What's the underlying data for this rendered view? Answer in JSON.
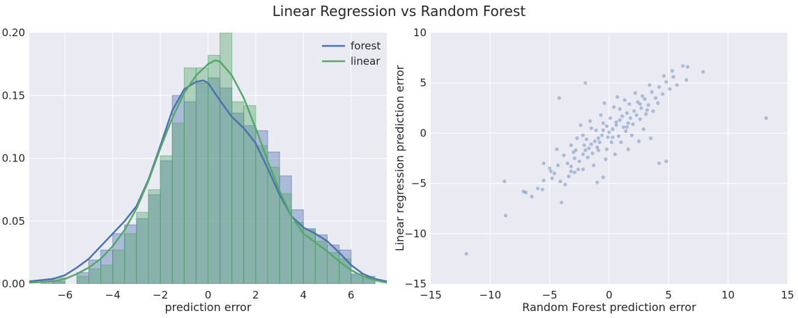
{
  "title": "Linear Regression vs Random Forest",
  "colors": {
    "forest": "#4c72b0",
    "linear": "#55a868",
    "axes_bg": "#eaeaf2",
    "grid": "#ffffff"
  },
  "chart_data": [
    {
      "type": "histogram",
      "xlabel": "prediction error",
      "ylabel": "",
      "xlim": [
        -7.5,
        7.5
      ],
      "ylim": [
        0,
        0.2
      ],
      "xticks": [
        "−6",
        "−4",
        "−2",
        "0",
        "2",
        "4",
        "6"
      ],
      "xtick_values": [
        -6,
        -4,
        -2,
        0,
        2,
        4,
        6
      ],
      "yticks": [
        "0.00",
        "0.05",
        "0.10",
        "0.15",
        "0.20"
      ],
      "ytick_values": [
        0,
        0.05,
        0.1,
        0.15,
        0.2
      ],
      "grid": true,
      "legend_position": "top-right",
      "bin_edges": [
        -7.5,
        -7.0,
        -6.5,
        -6.0,
        -5.5,
        -5.0,
        -4.5,
        -4.0,
        -3.5,
        -3.0,
        -2.5,
        -2.0,
        -1.5,
        -1.0,
        -0.5,
        0.0,
        0.5,
        1.0,
        1.5,
        2.0,
        2.5,
        3.0,
        3.5,
        4.0,
        4.5,
        5.0,
        5.5,
        6.0,
        6.5,
        7.0
      ],
      "series": [
        {
          "name": "forest",
          "hist": [
            0.0,
            0.003,
            0.002,
            0.0,
            0.009,
            0.019,
            0.027,
            0.04,
            0.047,
            0.052,
            0.071,
            0.098,
            0.15,
            0.145,
            0.16,
            0.164,
            0.156,
            0.136,
            0.126,
            0.122,
            0.105,
            0.086,
            0.059,
            0.044,
            0.039,
            0.031,
            0.027,
            0.008,
            0.006,
            0.0
          ],
          "kde": [
            [
              -7.5,
              0.002
            ],
            [
              -6.5,
              0.004
            ],
            [
              -6.0,
              0.007
            ],
            [
              -5.5,
              0.013
            ],
            [
              -5.0,
              0.02
            ],
            [
              -4.5,
              0.03
            ],
            [
              -4.0,
              0.04
            ],
            [
              -3.5,
              0.05
            ],
            [
              -3.0,
              0.062
            ],
            [
              -2.5,
              0.083
            ],
            [
              -2.0,
              0.11
            ],
            [
              -1.5,
              0.138
            ],
            [
              -1.0,
              0.155
            ],
            [
              -0.5,
              0.161
            ],
            [
              -0.2,
              0.162
            ],
            [
              0.0,
              0.16
            ],
            [
              0.5,
              0.146
            ],
            [
              1.0,
              0.133
            ],
            [
              1.5,
              0.124
            ],
            [
              2.0,
              0.112
            ],
            [
              2.5,
              0.092
            ],
            [
              3.0,
              0.071
            ],
            [
              3.5,
              0.054
            ],
            [
              4.0,
              0.045
            ],
            [
              4.5,
              0.04
            ],
            [
              5.0,
              0.034
            ],
            [
              5.5,
              0.025
            ],
            [
              6.0,
              0.015
            ],
            [
              6.5,
              0.008
            ],
            [
              7.0,
              0.004
            ],
            [
              7.5,
              0.002
            ]
          ]
        },
        {
          "name": "linear",
          "hist": [
            0.0,
            0.0,
            0.005,
            0.0,
            0.006,
            0.012,
            0.015,
            0.027,
            0.04,
            0.057,
            0.075,
            0.102,
            0.128,
            0.172,
            0.172,
            0.182,
            0.2,
            0.145,
            0.142,
            0.11,
            0.093,
            0.072,
            0.049,
            0.043,
            0.034,
            0.025,
            0.02,
            0.007,
            0.004,
            0.0
          ],
          "kde": [
            [
              -7.5,
              0.001
            ],
            [
              -6.5,
              0.002
            ],
            [
              -6.0,
              0.004
            ],
            [
              -5.5,
              0.008
            ],
            [
              -5.0,
              0.013
            ],
            [
              -4.5,
              0.02
            ],
            [
              -4.0,
              0.03
            ],
            [
              -3.5,
              0.043
            ],
            [
              -3.0,
              0.06
            ],
            [
              -2.5,
              0.082
            ],
            [
              -2.0,
              0.108
            ],
            [
              -1.5,
              0.132
            ],
            [
              -1.0,
              0.152
            ],
            [
              -0.5,
              0.166
            ],
            [
              0.0,
              0.175
            ],
            [
              0.3,
              0.178
            ],
            [
              0.5,
              0.177
            ],
            [
              1.0,
              0.166
            ],
            [
              1.5,
              0.148
            ],
            [
              2.0,
              0.124
            ],
            [
              2.5,
              0.098
            ],
            [
              3.0,
              0.074
            ],
            [
              3.5,
              0.054
            ],
            [
              4.0,
              0.04
            ],
            [
              4.5,
              0.033
            ],
            [
              5.0,
              0.026
            ],
            [
              5.5,
              0.018
            ],
            [
              6.0,
              0.011
            ],
            [
              6.5,
              0.006
            ],
            [
              7.0,
              0.003
            ],
            [
              7.5,
              0.001
            ]
          ]
        }
      ]
    },
    {
      "type": "scatter",
      "xlabel": "Random Forest prediction error",
      "ylabel": "Linear regression prediction error",
      "xlim": [
        -15,
        15
      ],
      "ylim": [
        -15,
        10
      ],
      "xticks": [
        "−15",
        "−10",
        "−5",
        "0",
        "5",
        "10",
        "15"
      ],
      "xtick_values": [
        -15,
        -10,
        -5,
        0,
        5,
        10,
        15
      ],
      "yticks": [
        "−15",
        "−10",
        "−5",
        "0",
        "5",
        "10"
      ],
      "ytick_values": [
        -15,
        -10,
        -5,
        0,
        5,
        10
      ],
      "grid": true,
      "points": [
        [
          -12.0,
          -12.0
        ],
        [
          13.2,
          1.5
        ],
        [
          -8.7,
          -8.2
        ],
        [
          -8.8,
          -4.8
        ],
        [
          -7.2,
          -5.8
        ],
        [
          -7.0,
          -5.9
        ],
        [
          -6.5,
          -6.3
        ],
        [
          -6.0,
          -5.5
        ],
        [
          -4.0,
          -6.9
        ],
        [
          -4.2,
          3.5
        ],
        [
          -2.0,
          5.0
        ],
        [
          7.9,
          6.1
        ],
        [
          6.6,
          6.6
        ],
        [
          6.2,
          6.7
        ],
        [
          6.5,
          5.3
        ],
        [
          4.8,
          -2.8
        ],
        [
          4.2,
          -3.0
        ],
        [
          3.5,
          -0.5
        ],
        [
          -1.0,
          -4.9
        ],
        [
          -0.5,
          -4.4
        ],
        [
          -5.5,
          -3.0
        ],
        [
          -5.0,
          -3.5
        ],
        [
          -4.8,
          -4.5
        ],
        [
          -5.6,
          -5.6
        ],
        [
          -3.2,
          -1.2
        ],
        [
          -4.4,
          -1.6
        ],
        [
          -3.7,
          -5.1
        ],
        [
          -5.5,
          -4.7
        ],
        [
          -2.1,
          -1.2
        ],
        [
          -3.2,
          -3.3
        ],
        [
          -2.9,
          -2.5
        ],
        [
          -4.6,
          -4.0
        ],
        [
          -2.6,
          -3.6
        ],
        [
          -3.2,
          -3.8
        ],
        [
          -2.9,
          -3.9
        ],
        [
          -2.2,
          -0.2
        ],
        [
          -2.8,
          -1.7
        ],
        [
          -3.5,
          -3.0
        ],
        [
          -2.2,
          -3.6
        ],
        [
          -2.0,
          -1.7
        ],
        [
          -1.5,
          -1.1
        ],
        [
          -1.2,
          -0.8
        ],
        [
          -0.8,
          -0.9
        ],
        [
          -0.9,
          -1.7
        ],
        [
          -0.5,
          0.3
        ],
        [
          -0.1,
          -0.4
        ],
        [
          0.3,
          0.4
        ],
        [
          0.6,
          1.1
        ],
        [
          0.9,
          1.3
        ],
        [
          1.2,
          0.6
        ],
        [
          1.5,
          2.0
        ],
        [
          1.8,
          1.5
        ],
        [
          2.1,
          2.2
        ],
        [
          2.4,
          3.1
        ],
        [
          2.7,
          2.5
        ],
        [
          3.0,
          3.4
        ],
        [
          3.3,
          2.8
        ],
        [
          3.6,
          4.1
        ],
        [
          3.9,
          3.5
        ],
        [
          4.2,
          4.6
        ],
        [
          4.5,
          3.9
        ],
        [
          4.8,
          5.1
        ],
        [
          5.1,
          4.4
        ],
        [
          5.4,
          5.6
        ],
        [
          5.7,
          4.8
        ],
        [
          -1.8,
          -2.4
        ],
        [
          -1.4,
          -2.0
        ],
        [
          -1.0,
          -1.4
        ],
        [
          -0.6,
          -0.2
        ],
        [
          -0.2,
          0.7
        ],
        [
          0.2,
          -0.9
        ],
        [
          0.8,
          -0.3
        ],
        [
          1.4,
          0.2
        ],
        [
          2.0,
          0.9
        ],
        [
          2.6,
          1.4
        ],
        [
          3.1,
          1.9
        ],
        [
          -2.4,
          0.8
        ],
        [
          -1.6,
          1.2
        ],
        [
          -0.7,
          1.8
        ],
        [
          0.4,
          2.6
        ],
        [
          1.3,
          3.3
        ],
        [
          2.2,
          4.0
        ],
        [
          -0.3,
          -2.6
        ],
        [
          0.5,
          -2.1
        ],
        [
          1.6,
          -1.6
        ],
        [
          2.5,
          -0.8
        ],
        [
          -3.8,
          -2.2
        ],
        [
          -4.1,
          -4.8
        ],
        [
          -3.4,
          -4.3
        ],
        [
          -2.5,
          -2.8
        ],
        [
          -1.9,
          -0.6
        ],
        [
          -1.1,
          0.3
        ],
        [
          0.1,
          1.5
        ],
        [
          0.9,
          2.4
        ],
        [
          1.7,
          2.9
        ],
        [
          2.9,
          0.4
        ],
        [
          3.7,
          2.2
        ],
        [
          4.1,
          3.0
        ],
        [
          -0.4,
          3.0
        ],
        [
          0.7,
          3.6
        ],
        [
          1.9,
          -0.2
        ],
        [
          -2.7,
          -0.5
        ],
        [
          -1.3,
          -3.2
        ],
        [
          -0.2,
          -1.6
        ],
        [
          1.0,
          -0.9
        ],
        [
          3.4,
          4.8
        ],
        [
          4.6,
          5.7
        ],
        [
          5.3,
          6.2
        ],
        [
          -4.9,
          -3.8
        ],
        [
          -4.3,
          -3.2
        ],
        [
          -3.0,
          -1.9
        ],
        [
          -2.2,
          -2.1
        ],
        [
          -1.7,
          -1.5
        ],
        [
          -0.9,
          -0.5
        ],
        [
          0.0,
          0.1
        ],
        [
          0.6,
          0.8
        ],
        [
          1.1,
          1.7
        ],
        [
          1.6,
          1.0
        ],
        [
          2.3,
          1.8
        ],
        [
          2.8,
          3.7
        ],
        [
          3.2,
          2.3
        ],
        [
          -1.5,
          0.5
        ],
        [
          -0.5,
          1.0
        ],
        [
          0.3,
          -0.4
        ],
        [
          1.5,
          0.6
        ],
        [
          2.6,
          2.9
        ]
      ]
    }
  ]
}
